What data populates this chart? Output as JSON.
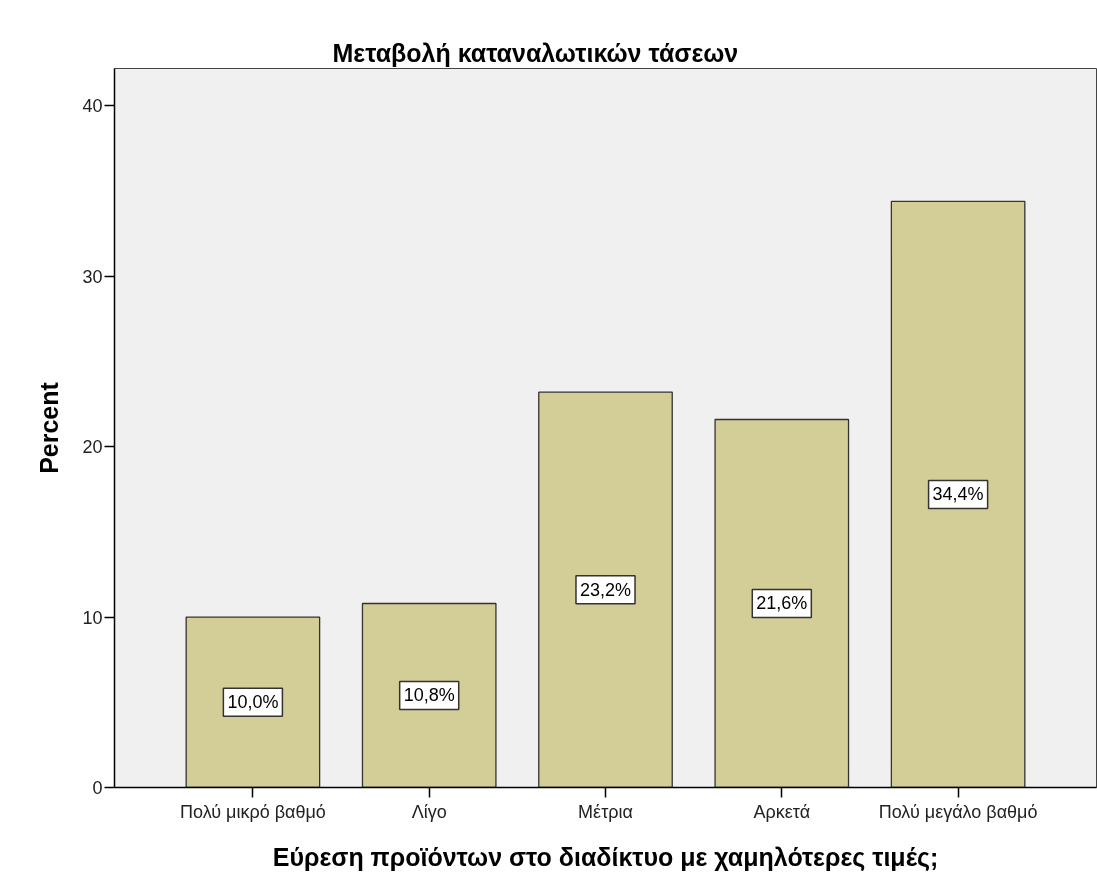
{
  "chart_data": {
    "type": "bar",
    "title": "Μεταβολή καταναλωτικών τάσεων",
    "xlabel": "Εύρεση προϊόντων στο διαδίκτυο με χαμηλότερες τιμές;",
    "ylabel": "Percent",
    "categories": [
      "Πολύ μικρό βαθμό",
      "Λίγο",
      "Μέτρια",
      "Αρκετά",
      "Πολύ μεγάλο βαθμό"
    ],
    "values": [
      10.0,
      10.8,
      23.2,
      21.6,
      34.4
    ],
    "color": "#d3ce98",
    "value_labels": [
      "10,0%",
      "10,8%",
      "23,2%",
      "21,6%",
      "34,4%"
    ],
    "ylim": [
      0,
      42.2
    ],
    "yticks": [
      0,
      10,
      20,
      30,
      40
    ],
    "grid": false
  }
}
